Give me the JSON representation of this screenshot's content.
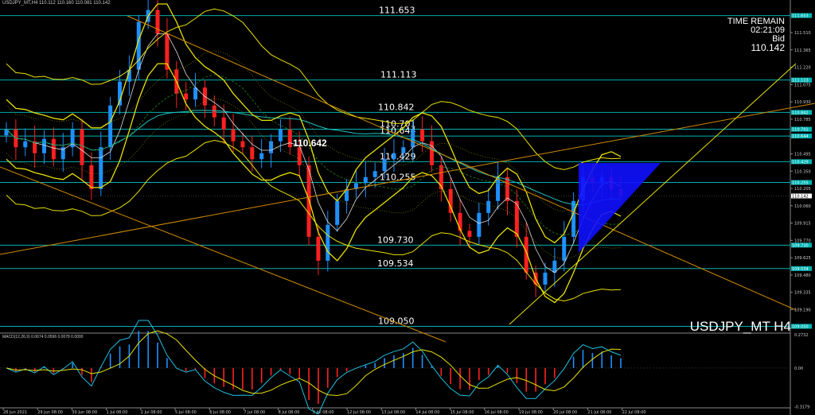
{
  "header": {
    "symbol_line": "USDJPY_MT,H4 110.112 110.160 110.081 110.142"
  },
  "time_remain": {
    "title": "TIME REMAIN",
    "value": "02:21:09",
    "bid_label": "Bid",
    "bid_value": "110.142"
  },
  "watermark": "USDJPY_MT H4",
  "colors": {
    "bull": "#1e90ff",
    "bear": "#ff2020",
    "level": "#00b0b0",
    "yellow": "#e8e000",
    "orange": "#d08a00",
    "price_tag_bg": "#00b4b4",
    "triangle": "#1010ff"
  },
  "chart_data": {
    "type": "candlestick",
    "ylim": [
      109.0,
      111.73
    ],
    "y_ticks": [
      "111.510",
      "111.365",
      "111.220",
      "111.075",
      "110.930",
      "110.785",
      "110.640",
      "110.495",
      "110.350",
      "110.205",
      "110.060",
      "109.915",
      "109.770",
      "109.625",
      "109.480",
      "109.335",
      "109.190"
    ],
    "levels": [
      {
        "value": 111.653,
        "label": "111.653",
        "tag": "111.653"
      },
      {
        "value": 111.113,
        "label": "111.113",
        "tag": "111.113"
      },
      {
        "value": 110.842,
        "label": "110.842",
        "tag": "110.842"
      },
      {
        "value": 110.701,
        "label": "110.701",
        "tag": "110.701"
      },
      {
        "value": 110.644,
        "label": "110.644",
        "tag": "110.644"
      },
      {
        "value": 110.429,
        "label": "110.429",
        "tag": "110.429"
      },
      {
        "value": 110.255,
        "label": "110.255",
        "tag": "110.255"
      },
      {
        "value": 109.73,
        "label": "109.730",
        "tag": "109.730"
      },
      {
        "value": 109.534,
        "label": "109.534",
        "tag": "109.534"
      },
      {
        "value": 109.05,
        "label": "109.050",
        "tag": "109.050"
      }
    ],
    "current_price": {
      "value": 110.142,
      "tag": "110.142"
    },
    "annotation": "110.642",
    "x_labels": [
      "28 Jun 2021",
      "29 Jun 08:00",
      "30 Jun 08:00",
      "1 Jul 08:00",
      "2 Jul 08:00",
      "5 Jul 08:00",
      "6 Jul 08:00",
      "7 Jul 08:00",
      "8 Jul 08:00",
      "9 Jul 08:00",
      "12 Jul 08:00",
      "13 Jul 08:00",
      "14 Jul 08:00",
      "15 Jul 08:00",
      "16 Jul 08:00",
      "19 Jul 08:00",
      "20 Jul 08:00",
      "21 Jul 08:00",
      "22 Jul 08:00"
    ],
    "close_path": [
      110.7,
      110.55,
      110.6,
      110.5,
      110.62,
      110.45,
      110.55,
      110.7,
      110.4,
      110.2,
      110.55,
      110.9,
      111.1,
      111.2,
      111.6,
      111.7,
      111.5,
      111.2,
      111.0,
      110.95,
      111.05,
      110.9,
      110.8,
      110.7,
      110.6,
      110.55,
      110.45,
      110.5,
      110.6,
      110.7,
      110.55,
      110.4,
      109.8,
      109.6,
      109.9,
      110.1,
      110.2,
      110.25,
      110.3,
      110.35,
      110.45,
      110.5,
      110.55,
      110.7,
      110.6,
      110.4,
      110.2,
      110.0,
      109.85,
      109.8,
      110.0,
      110.1,
      110.3,
      110.1,
      109.8,
      109.5,
      109.4,
      109.5,
      109.6,
      109.8,
      110.1,
      110.3,
      110.25,
      110.3,
      110.2,
      110.14
    ],
    "macd": {
      "label": "MACD(12,26,9) 0.0674 0.0596 0.0078 0.0000",
      "ylim": [
        -0.32,
        0.28
      ],
      "y_ticks": [
        "0.2732",
        "0.00",
        "-0.3179"
      ]
    }
  }
}
